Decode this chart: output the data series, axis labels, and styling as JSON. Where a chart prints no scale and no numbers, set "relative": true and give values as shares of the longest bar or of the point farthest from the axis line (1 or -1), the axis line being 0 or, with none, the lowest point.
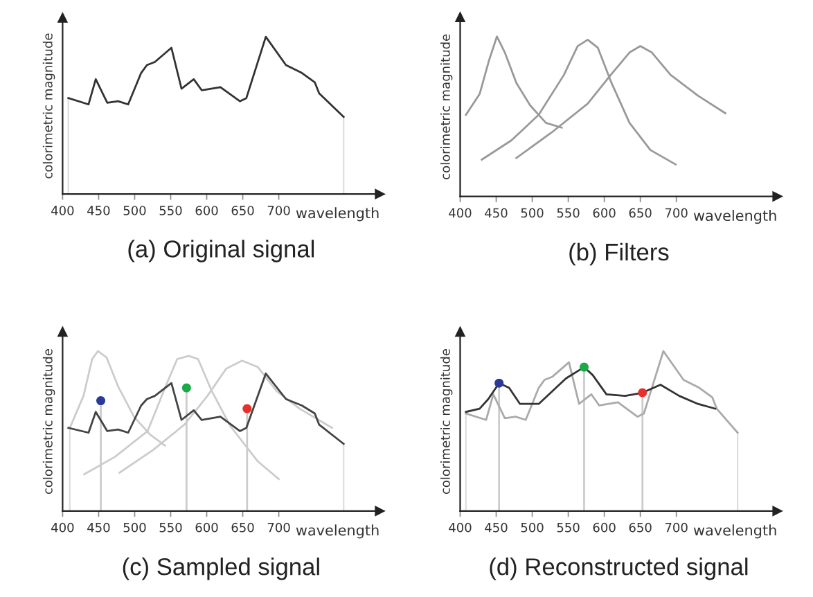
{
  "chart_data": [
    {
      "type": "line",
      "title": "(a) Original signal",
      "xlabel": "wavelength",
      "ylabel": "colorimetric magnitude",
      "relative": true,
      "xlim": [
        400,
        840
      ],
      "xticks": [
        400,
        450,
        500,
        550,
        600,
        650,
        700
      ],
      "tick_labels": "x",
      "series": [
        {
          "color": "#333333",
          "x": [
            408,
            436,
            446,
            462,
            477,
            491,
            509,
            517,
            528,
            551,
            565,
            582,
            593,
            619,
            646,
            655,
            682,
            710,
            732,
            750,
            756,
            790
          ],
          "values": [
            0.61,
            0.57,
            0.73,
            0.58,
            0.59,
            0.57,
            0.77,
            0.82,
            0.84,
            0.93,
            0.67,
            0.73,
            0.66,
            0.68,
            0.59,
            0.61,
            1.0,
            0.82,
            0.77,
            0.71,
            0.64,
            0.49
          ]
        }
      ],
      "ref_lines": [
        {
          "axis": "x",
          "value": 408,
          "color": "#dddddd"
        },
        {
          "axis": "x",
          "value": 790,
          "color": "#dddddd"
        }
      ]
    },
    {
      "type": "line",
      "title": "(b) Filters",
      "xlabel": "wavelength",
      "ylabel": "colorimetric magnitude",
      "relative": true,
      "xlim": [
        400,
        840
      ],
      "xticks": [
        400,
        450,
        500,
        550,
        600,
        650,
        700
      ],
      "tick_labels": "x",
      "series": [
        {
          "color": "#999999",
          "x": [
            408,
            427,
            440,
            451,
            462,
            478,
            497,
            519,
            541
          ],
          "values": [
            0.51,
            0.64,
            0.85,
            1.0,
            0.9,
            0.71,
            0.57,
            0.46,
            0.43
          ]
        },
        {
          "color": "#999999",
          "x": [
            430,
            471,
            509,
            544,
            563,
            577,
            591,
            610,
            635,
            664,
            699
          ],
          "values": [
            0.23,
            0.35,
            0.51,
            0.76,
            0.94,
            0.98,
            0.93,
            0.71,
            0.46,
            0.29,
            0.2
          ]
        },
        {
          "color": "#999999",
          "x": [
            478,
            527,
            577,
            609,
            635,
            650,
            666,
            692,
            730,
            768
          ],
          "values": [
            0.24,
            0.4,
            0.58,
            0.76,
            0.9,
            0.94,
            0.9,
            0.76,
            0.63,
            0.52
          ]
        }
      ]
    },
    {
      "type": "line",
      "title": "(c) Sampled signal",
      "xlabel": "wavelength",
      "ylabel": "colorimetric magnitude",
      "relative": true,
      "xlim": [
        400,
        840
      ],
      "xticks": [
        400,
        450,
        500,
        550,
        600,
        650,
        700
      ],
      "tick_labels": "x",
      "series": [
        {
          "color": "#cccccc",
          "x": [
            410,
            429,
            441,
            449,
            461,
            477,
            499,
            521,
            542
          ],
          "values": [
            0.52,
            0.72,
            0.95,
            1.0,
            0.96,
            0.78,
            0.59,
            0.48,
            0.41
          ]
        },
        {
          "color": "#cccccc",
          "x": [
            430,
            473,
            518,
            543,
            559,
            575,
            588,
            607,
            633,
            671,
            700
          ],
          "values": [
            0.23,
            0.34,
            0.5,
            0.78,
            0.95,
            0.97,
            0.95,
            0.75,
            0.53,
            0.31,
            0.2
          ]
        },
        {
          "color": "#cccccc",
          "x": [
            479,
            525,
            569,
            601,
            627,
            649,
            671,
            697,
            729,
            774
          ],
          "values": [
            0.24,
            0.38,
            0.54,
            0.72,
            0.89,
            0.94,
            0.9,
            0.75,
            0.64,
            0.52
          ]
        },
        {
          "color": "#444444",
          "x": [
            408,
            436,
            446,
            462,
            477,
            491,
            509,
            517,
            528,
            551,
            565,
            582,
            593,
            619,
            646,
            655,
            682,
            710,
            732,
            750,
            756,
            790
          ],
          "values": [
            0.52,
            0.49,
            0.62,
            0.5,
            0.51,
            0.49,
            0.66,
            0.7,
            0.72,
            0.8,
            0.57,
            0.63,
            0.57,
            0.59,
            0.5,
            0.52,
            0.86,
            0.7,
            0.66,
            0.61,
            0.54,
            0.42
          ]
        },
        {
          "type": "lollipop",
          "color": "#cccccc",
          "colors": [
            "#2b3a9a",
            "#1aaa4a",
            "#e8302a"
          ],
          "marker": "circle",
          "x": [
            453,
            572,
            656
          ],
          "values": [
            0.69,
            0.77,
            0.64
          ]
        }
      ],
      "ref_lines": [
        {
          "axis": "x",
          "value": 410,
          "color": "#dddddd"
        },
        {
          "axis": "x",
          "value": 790,
          "color": "#dddddd"
        }
      ]
    },
    {
      "type": "line",
      "title": "(d) Reconstructed signal",
      "xlabel": "wavelength",
      "ylabel": "colorimetric magnitude",
      "relative": true,
      "xlim": [
        400,
        840
      ],
      "xticks": [
        400,
        450,
        500,
        550,
        600,
        650,
        700
      ],
      "tick_labels": "x",
      "series": [
        {
          "color": "#aaaaaa",
          "x": [
            408,
            436,
            446,
            462,
            477,
            491,
            509,
            517,
            528,
            551,
            565,
            582,
            593,
            619,
            646,
            655,
            682,
            710,
            732,
            750,
            756,
            785
          ],
          "values": [
            0.61,
            0.57,
            0.73,
            0.58,
            0.59,
            0.57,
            0.77,
            0.82,
            0.84,
            0.93,
            0.67,
            0.73,
            0.66,
            0.68,
            0.59,
            0.61,
            1.0,
            0.82,
            0.77,
            0.71,
            0.64,
            0.49
          ]
        },
        {
          "color": "#333333",
          "x": [
            408,
            427,
            439,
            454,
            468,
            483,
            509,
            528,
            547,
            572,
            584,
            603,
            629,
            653,
            678,
            704,
            730,
            754
          ],
          "values": [
            0.62,
            0.64,
            0.7,
            0.8,
            0.77,
            0.67,
            0.67,
            0.75,
            0.83,
            0.9,
            0.85,
            0.73,
            0.72,
            0.74,
            0.79,
            0.72,
            0.67,
            0.64
          ]
        },
        {
          "type": "lollipop",
          "color": "#cccccc",
          "colors": [
            "#2b3a9a",
            "#1aaa4a",
            "#e8302a"
          ],
          "marker": "circle",
          "x": [
            454,
            572,
            653
          ],
          "values": [
            0.8,
            0.9,
            0.74
          ]
        }
      ],
      "ref_lines": [
        {
          "axis": "x",
          "value": 408,
          "color": "#dddddd"
        },
        {
          "axis": "x",
          "value": 785,
          "color": "#dddddd"
        }
      ]
    }
  ]
}
